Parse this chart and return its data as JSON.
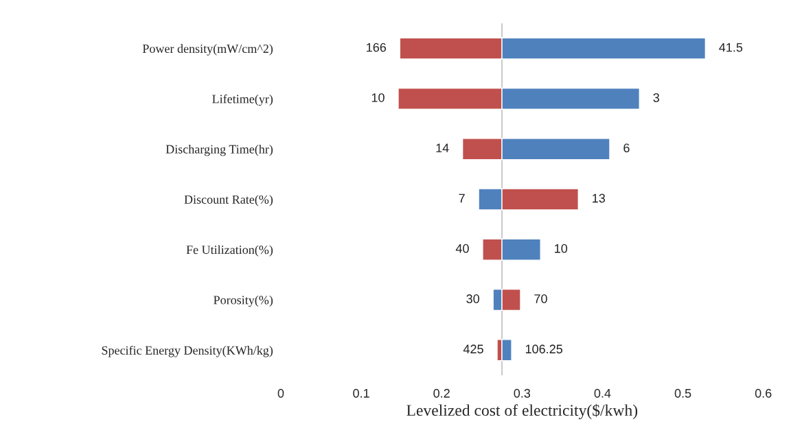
{
  "chart_data": {
    "type": "bar",
    "orientation": "horizontal",
    "xlabel": "Levelized cost of electricity($/kwh)",
    "categories": [
      "Power density(mW/cm^2)",
      "Lifetime(yr)",
      "Discharging Time(hr)",
      "Discount Rate(%)",
      "Fe Utilization(%)",
      "Porosity(%)",
      "Specific Energy Density(KWh/kg)"
    ],
    "series": [
      {
        "base": [
          0.275,
          0.275,
          0.275,
          0.275,
          0.275,
          0.275,
          0.275
        ],
        "values": [
          -0.127,
          -0.129,
          -0.049,
          -0.029,
          -0.024,
          -0.011,
          -0.006
        ],
        "colors": [
          "#c0504d",
          "#c0504d",
          "#c0504d",
          "#4f81bd",
          "#c0504d",
          "#4f81bd",
          "#c0504d"
        ]
      },
      {
        "base": [
          0.275,
          0.275,
          0.275,
          0.275,
          0.275,
          0.275,
          0.275
        ],
        "values": [
          0.253,
          0.171,
          0.134,
          0.095,
          0.048,
          0.023,
          0.012
        ],
        "colors": [
          "#4f81bd",
          "#4f81bd",
          "#4f81bd",
          "#c0504d",
          "#4f81bd",
          "#c0504d",
          "#4f81bd"
        ]
      }
    ],
    "annotations": [
      {
        "text": "166",
        "x": 0.148,
        "y": "Power density(mW/cm^2)"
      },
      {
        "text": "10",
        "x": 0.146,
        "y": "Lifetime(yr)"
      },
      {
        "text": "14",
        "x": 0.226,
        "y": "Discharging Time(hr)"
      },
      {
        "text": "7",
        "x": 0.246,
        "y": "Discount Rate(%)"
      },
      {
        "text": "40",
        "x": 0.251,
        "y": "Fe Utilization(%)"
      },
      {
        "text": "30",
        "x": 0.264,
        "y": "Porosity(%)"
      },
      {
        "text": "425",
        "x": 0.269,
        "y": "Specific Energy Density(KWh/kg)"
      },
      {
        "text": "41.5",
        "x": 0.528,
        "y": "Power density(mW/cm^2)"
      },
      {
        "text": "3",
        "x": 0.446,
        "y": "Lifetime(yr)"
      },
      {
        "text": "6",
        "x": 0.409,
        "y": "Discharging Time(hr)"
      },
      {
        "text": "13",
        "x": 0.37,
        "y": "Discount Rate(%)"
      },
      {
        "text": "10",
        "x": 0.323,
        "y": "Fe Utilization(%)"
      },
      {
        "text": "70",
        "x": 0.298,
        "y": "Porosity(%)"
      },
      {
        "text": "106.25",
        "x": 0.287,
        "y": "Specific Energy Density(KWh/kg)"
      }
    ],
    "xlim": [
      0,
      0.6
    ],
    "xticks": [
      0,
      0.1,
      0.2,
      0.3,
      0.4,
      0.5,
      0.6
    ],
    "ref_lines": [
      {
        "axis": "x",
        "value": 0.275,
        "color": "#bfbfbf"
      }
    ],
    "grid": false
  }
}
